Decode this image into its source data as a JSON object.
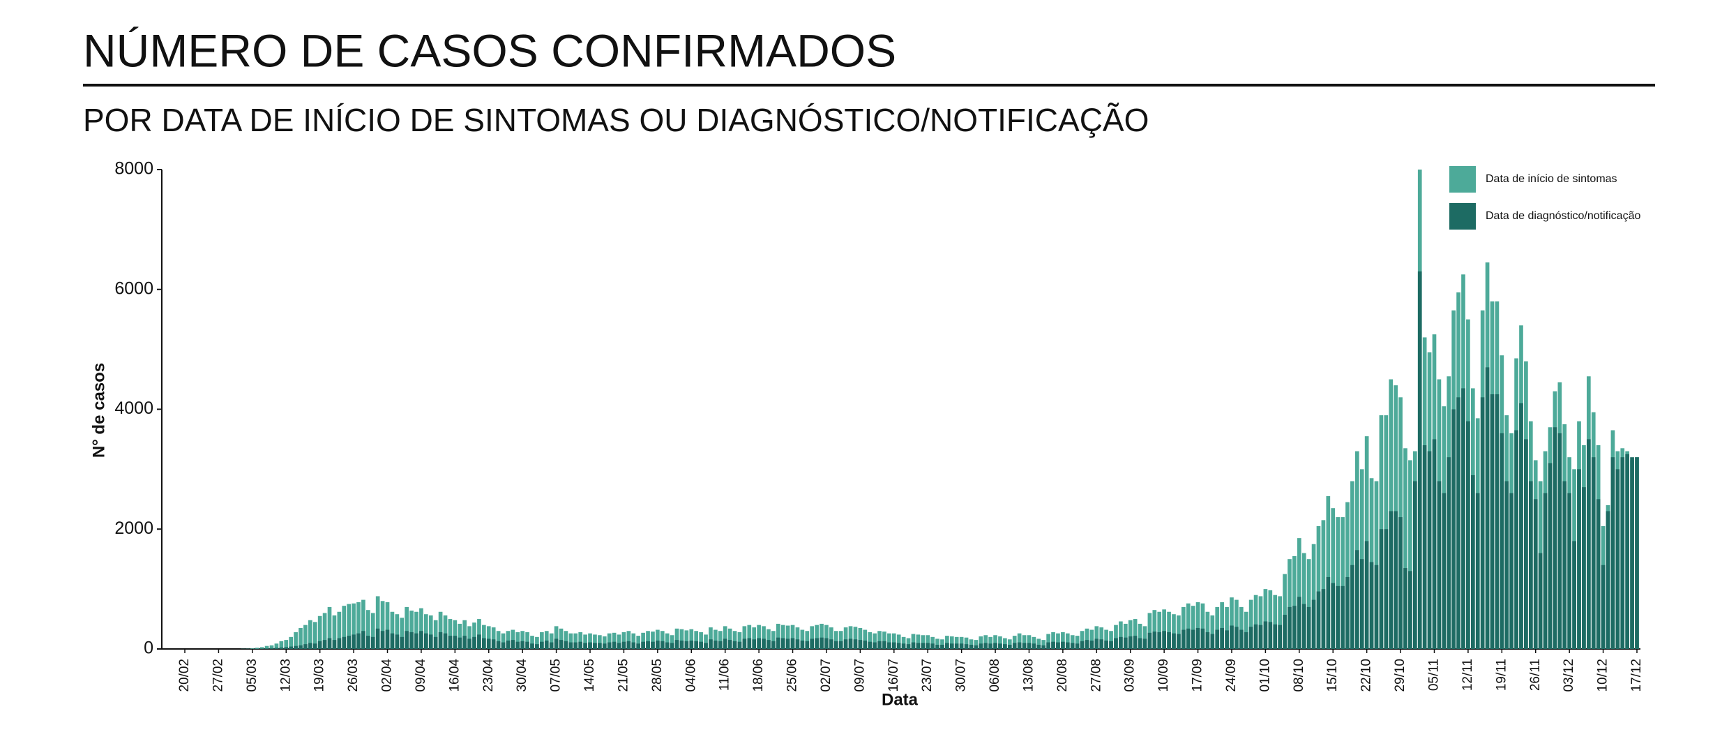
{
  "chart_data": {
    "type": "bar",
    "title": "NÚMERO DE CASOS CONFIRMADOS",
    "subtitle": "POR DATA DE INÍCIO DE SINTOMAS OU DIAGNÓSTICO/NOTIFICAÇÃO",
    "xlabel": "Data",
    "ylabel": "N° de casos",
    "ylim": [
      0,
      8000
    ],
    "yticks": [
      0,
      2000,
      4000,
      6000,
      8000
    ],
    "legend": "top-right",
    "categories": [
      "20/02",
      null,
      null,
      null,
      null,
      null,
      null,
      "27/02",
      null,
      null,
      null,
      null,
      null,
      null,
      "05/03",
      null,
      null,
      null,
      null,
      null,
      null,
      "12/03",
      null,
      null,
      null,
      null,
      null,
      null,
      "19/03",
      null,
      null,
      null,
      null,
      null,
      null,
      "26/03",
      null,
      null,
      null,
      null,
      null,
      null,
      "02/04",
      null,
      null,
      null,
      null,
      null,
      null,
      "09/04",
      null,
      null,
      null,
      null,
      null,
      null,
      "16/04",
      null,
      null,
      null,
      null,
      null,
      null,
      "23/04",
      null,
      null,
      null,
      null,
      null,
      null,
      "30/04",
      null,
      null,
      null,
      null,
      null,
      null,
      "07/05",
      null,
      null,
      null,
      null,
      null,
      null,
      "14/05",
      null,
      null,
      null,
      null,
      null,
      null,
      "21/05",
      null,
      null,
      null,
      null,
      null,
      null,
      "28/05",
      null,
      null,
      null,
      null,
      null,
      null,
      "04/06",
      null,
      null,
      null,
      null,
      null,
      null,
      "11/06",
      null,
      null,
      null,
      null,
      null,
      null,
      "18/06",
      null,
      null,
      null,
      null,
      null,
      null,
      "25/06",
      null,
      null,
      null,
      null,
      null,
      null,
      "02/07",
      null,
      null,
      null,
      null,
      null,
      null,
      "09/07",
      null,
      null,
      null,
      null,
      null,
      null,
      "16/07",
      null,
      null,
      null,
      null,
      null,
      null,
      "23/07",
      null,
      null,
      null,
      null,
      null,
      null,
      "30/07",
      null,
      null,
      null,
      null,
      null,
      null,
      "06/08",
      null,
      null,
      null,
      null,
      null,
      null,
      "13/08",
      null,
      null,
      null,
      null,
      null,
      null,
      "20/08",
      null,
      null,
      null,
      null,
      null,
      null,
      "27/08",
      null,
      null,
      null,
      null,
      null,
      null,
      "03/09",
      null,
      null,
      null,
      null,
      null,
      null,
      "10/09",
      null,
      null,
      null,
      null,
      null,
      null,
      "17/09",
      null,
      null,
      null,
      null,
      null,
      null,
      "24/09",
      null,
      null,
      null,
      null,
      null,
      null,
      "01/10",
      null,
      null,
      null,
      null,
      null,
      null,
      "08/10",
      null,
      null,
      null,
      null,
      null,
      null,
      "15/10",
      null,
      null,
      null,
      null,
      null,
      null,
      "22/10",
      null,
      null,
      null,
      null,
      null,
      null,
      "29/10",
      null,
      null,
      null,
      null,
      null,
      null,
      "05/11",
      null,
      null,
      null,
      null,
      null,
      null,
      "12/11",
      null,
      null,
      null,
      null,
      null,
      null,
      "19/11",
      null,
      null,
      null,
      null,
      null,
      null,
      "26/11",
      null,
      null,
      null,
      null,
      null,
      null,
      "03/12",
      null,
      null,
      null,
      null,
      null,
      null,
      "10/12",
      null,
      null,
      null,
      null,
      null,
      null,
      "17/12"
    ],
    "series": [
      {
        "name": "Data de início de sintomas",
        "color": "#4daa99",
        "values": [
          0,
          0,
          0,
          0,
          0,
          0,
          0,
          0,
          0,
          0,
          0,
          0,
          2,
          4,
          10,
          20,
          30,
          50,
          60,
          90,
          130,
          150,
          200,
          280,
          350,
          400,
          480,
          450,
          550,
          600,
          700,
          560,
          620,
          720,
          750,
          760,
          780,
          820,
          650,
          600,
          880,
          800,
          780,
          620,
          580,
          520,
          700,
          640,
          620,
          680,
          580,
          560,
          480,
          620,
          560,
          500,
          480,
          420,
          480,
          380,
          440,
          500,
          400,
          380,
          360,
          300,
          260,
          300,
          320,
          280,
          300,
          280,
          220,
          200,
          280,
          300,
          260,
          380,
          340,
          300,
          260,
          260,
          280,
          240,
          260,
          240,
          230,
          210,
          260,
          270,
          240,
          280,
          300,
          260,
          220,
          270,
          300,
          290,
          320,
          300,
          260,
          230,
          340,
          330,
          310,
          330,
          300,
          280,
          240,
          360,
          320,
          300,
          380,
          340,
          300,
          280,
          380,
          400,
          360,
          400,
          380,
          330,
          300,
          420,
          400,
          390,
          400,
          360,
          320,
          300,
          380,
          400,
          420,
          400,
          360,
          300,
          300,
          360,
          380,
          370,
          350,
          320,
          280,
          260,
          300,
          290,
          260,
          260,
          240,
          200,
          180,
          250,
          240,
          230,
          230,
          200,
          170,
          160,
          220,
          210,
          200,
          200,
          190,
          160,
          150,
          210,
          230,
          200,
          230,
          210,
          180,
          160,
          220,
          260,
          230,
          230,
          200,
          170,
          150,
          250,
          280,
          260,
          280,
          260,
          230,
          220,
          300,
          340,
          320,
          380,
          360,
          320,
          300,
          400,
          460,
          420,
          480,
          500,
          420,
          380,
          600,
          650,
          620,
          660,
          620,
          580,
          560,
          700,
          760,
          720,
          780,
          760,
          620,
          560,
          700,
          780,
          700,
          860,
          820,
          700,
          620,
          820,
          900,
          880,
          1000,
          980,
          900,
          880,
          1250,
          1500,
          1550,
          1850,
          1600,
          1500,
          1750,
          2050,
          2150,
          2550,
          2350,
          2200,
          2200,
          2450,
          2800,
          3300,
          3000,
          3550,
          2850,
          2800,
          3900,
          3900,
          4500,
          4400,
          4200,
          3350,
          3150,
          3300,
          8000,
          5200,
          4950,
          5250,
          4500,
          4050,
          4550,
          5650,
          5950,
          6250,
          5500,
          4350,
          3850,
          5650,
          6450,
          5800,
          5800,
          4900,
          3900,
          3600,
          4850,
          5400,
          4800,
          3800,
          3150,
          2800,
          3300,
          3700,
          4300,
          4450,
          3750,
          3200,
          3000,
          3800,
          3400,
          4550,
          3950,
          3400,
          2050,
          2400,
          3650,
          3300,
          3350,
          3300,
          3150,
          3200
        ]
      },
      {
        "name": "Data de diagnóstico/notificação",
        "color": "#1d6b63",
        "values": [
          0,
          0,
          0,
          0,
          0,
          0,
          0,
          0,
          0,
          0,
          0,
          0,
          2,
          2,
          3,
          5,
          8,
          10,
          15,
          20,
          25,
          30,
          40,
          50,
          60,
          80,
          100,
          90,
          130,
          150,
          180,
          150,
          180,
          200,
          220,
          240,
          260,
          300,
          220,
          200,
          340,
          300,
          320,
          260,
          240,
          200,
          300,
          280,
          260,
          300,
          260,
          240,
          200,
          280,
          260,
          220,
          220,
          190,
          220,
          170,
          200,
          240,
          180,
          170,
          160,
          130,
          110,
          140,
          150,
          120,
          130,
          120,
          90,
          80,
          120,
          140,
          110,
          170,
          150,
          130,
          110,
          110,
          120,
          100,
          110,
          100,
          100,
          90,
          110,
          120,
          100,
          120,
          130,
          110,
          90,
          120,
          130,
          120,
          140,
          130,
          110,
          100,
          150,
          140,
          130,
          140,
          130,
          120,
          100,
          160,
          140,
          130,
          170,
          150,
          130,
          120,
          170,
          180,
          160,
          180,
          170,
          150,
          130,
          190,
          180,
          170,
          180,
          160,
          140,
          130,
          170,
          180,
          190,
          180,
          160,
          130,
          130,
          160,
          170,
          160,
          150,
          140,
          120,
          110,
          130,
          130,
          110,
          110,
          100,
          90,
          80,
          110,
          100,
          100,
          100,
          90,
          70,
          70,
          100,
          90,
          90,
          90,
          80,
          70,
          60,
          90,
          100,
          90,
          100,
          90,
          80,
          70,
          100,
          110,
          100,
          100,
          90,
          70,
          60,
          110,
          120,
          110,
          120,
          110,
          100,
          90,
          130,
          150,
          140,
          170,
          160,
          140,
          130,
          180,
          200,
          190,
          210,
          220,
          180,
          170,
          270,
          290,
          280,
          300,
          280,
          260,
          250,
          320,
          340,
          320,
          350,
          340,
          280,
          250,
          320,
          350,
          310,
          390,
          370,
          320,
          280,
          370,
          410,
          400,
          460,
          450,
          410,
          400,
          570,
          700,
          720,
          870,
          750,
          700,
          820,
          960,
          1000,
          1200,
          1100,
          1050,
          1050,
          1200,
          1400,
          1650,
          1500,
          1800,
          1450,
          1400,
          2000,
          2000,
          2300,
          2300,
          2200,
          1350,
          1300,
          2800,
          6300,
          3400,
          3300,
          3500,
          2800,
          2600,
          3200,
          4000,
          4200,
          4350,
          3800,
          2900,
          2600,
          4200,
          4700,
          4250,
          4250,
          3600,
          2800,
          2600,
          3650,
          4100,
          3500,
          2800,
          2500,
          1600,
          2600,
          3100,
          3700,
          3600,
          2800,
          2600,
          1800,
          3000,
          2700,
          3500,
          3200,
          2500,
          1400,
          2300,
          3200,
          3000,
          3200,
          3250,
          3200,
          3200
        ]
      }
    ]
  }
}
